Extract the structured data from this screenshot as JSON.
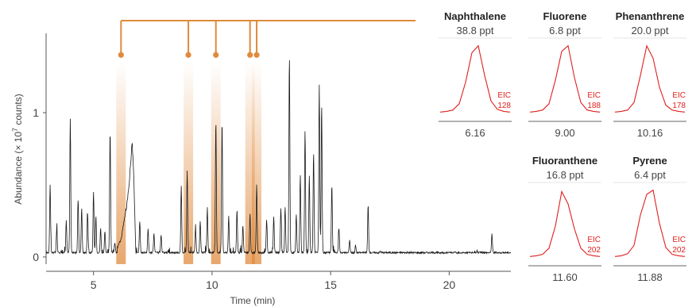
{
  "chart_data": [
    {
      "type": "line",
      "id": "main-chromatogram",
      "title": "",
      "xlabel": "Time (min)",
      "ylabel_prefix": "Abundance (× 10",
      "ylabel_exp": "7",
      "ylabel_suffix": " counts)",
      "xlim": [
        3.0,
        22.6
      ],
      "ylim": [
        -0.05,
        1.55
      ],
      "x_ticks": [
        5,
        10,
        15,
        20
      ],
      "y_ticks": [
        0,
        1
      ],
      "grid": false,
      "line_color": "#1a1a1a",
      "highlight_color": "#e08a3c",
      "baseline": 0.03,
      "peaks": [
        {
          "x": 3.17,
          "y": 0.5
        },
        {
          "x": 3.45,
          "y": 0.2
        },
        {
          "x": 3.85,
          "y": 0.25
        },
        {
          "x": 4.02,
          "y": 0.96
        },
        {
          "x": 4.35,
          "y": 0.4
        },
        {
          "x": 4.5,
          "y": 0.34
        },
        {
          "x": 4.75,
          "y": 0.3
        },
        {
          "x": 5.0,
          "y": 0.45
        },
        {
          "x": 5.1,
          "y": 0.28
        },
        {
          "x": 5.3,
          "y": 0.2
        },
        {
          "x": 5.48,
          "y": 0.18
        },
        {
          "x": 5.7,
          "y": 0.88
        },
        {
          "x": 5.9,
          "y": 0.1
        },
        {
          "x": 6.35,
          "y": 0.3
        },
        {
          "x": 6.7,
          "y": 0.35
        },
        {
          "x": 6.95,
          "y": 0.25
        },
        {
          "x": 7.3,
          "y": 0.2
        },
        {
          "x": 7.55,
          "y": 0.16
        },
        {
          "x": 7.85,
          "y": 0.15
        },
        {
          "x": 8.7,
          "y": 0.49
        },
        {
          "x": 8.95,
          "y": 0.6
        },
        {
          "x": 9.3,
          "y": 0.2
        },
        {
          "x": 9.5,
          "y": 0.25
        },
        {
          "x": 9.8,
          "y": 0.34
        },
        {
          "x": 10.16,
          "y": 0.95
        },
        {
          "x": 10.42,
          "y": 0.95
        },
        {
          "x": 10.7,
          "y": 0.28
        },
        {
          "x": 11.05,
          "y": 0.33
        },
        {
          "x": 11.3,
          "y": 0.22
        },
        {
          "x": 11.6,
          "y": 0.3
        },
        {
          "x": 11.88,
          "y": 0.5
        },
        {
          "x": 12.3,
          "y": 0.26
        },
        {
          "x": 12.6,
          "y": 0.28
        },
        {
          "x": 12.9,
          "y": 0.34
        },
        {
          "x": 13.08,
          "y": 0.35
        },
        {
          "x": 13.26,
          "y": 1.4
        },
        {
          "x": 13.55,
          "y": 0.3
        },
        {
          "x": 13.72,
          "y": 0.57
        },
        {
          "x": 13.92,
          "y": 0.88
        },
        {
          "x": 14.1,
          "y": 0.56
        },
        {
          "x": 14.28,
          "y": 0.72
        },
        {
          "x": 14.52,
          "y": 1.19
        },
        {
          "x": 14.62,
          "y": 1.05
        },
        {
          "x": 15.05,
          "y": 0.5
        },
        {
          "x": 15.35,
          "y": 0.2
        },
        {
          "x": 15.8,
          "y": 0.12
        },
        {
          "x": 16.05,
          "y": 0.08
        },
        {
          "x": 16.58,
          "y": 0.36
        },
        {
          "x": 17.1,
          "y": 0.04
        },
        {
          "x": 21.8,
          "y": 0.16
        }
      ],
      "hump": [
        {
          "x": 6.0,
          "y": 0.06
        },
        {
          "x": 6.1,
          "y": 0.1
        },
        {
          "x": 6.2,
          "y": 0.16
        },
        {
          "x": 6.3,
          "y": 0.26
        },
        {
          "x": 6.4,
          "y": 0.36
        },
        {
          "x": 6.5,
          "y": 0.5
        },
        {
          "x": 6.57,
          "y": 0.66
        },
        {
          "x": 6.63,
          "y": 0.8
        },
        {
          "x": 6.7,
          "y": 0.55
        },
        {
          "x": 6.78,
          "y": 0.05
        }
      ],
      "markers": [
        {
          "name": "Naphthalene",
          "x": 6.16
        },
        {
          "name": "Fluorene",
          "x": 9.0
        },
        {
          "name": "Phenanthrene",
          "x": 10.16
        },
        {
          "name": "Fluoranthene",
          "x": 11.6
        },
        {
          "name": "Pyrene",
          "x": 11.88
        }
      ],
      "marker_y": 1.4
    },
    {
      "type": "line",
      "id": "eic-insets",
      "line_color": "#e0201e",
      "compounds": [
        {
          "name": "Naphthalene",
          "concentration": "38.8 ppt",
          "rt": "6.16",
          "eic_label": "EIC",
          "mz": "128",
          "shape": [
            0.02,
            0.03,
            0.05,
            0.14,
            0.45,
            0.88,
            0.98,
            0.55,
            0.18,
            0.06,
            0.03,
            0.02
          ]
        },
        {
          "name": "Fluorene",
          "concentration": "6.8 ppt",
          "rt": "9.00",
          "eic_label": "EIC",
          "mz": "188",
          "shape": [
            0.02,
            0.03,
            0.05,
            0.14,
            0.48,
            0.9,
            0.98,
            0.52,
            0.16,
            0.05,
            0.03,
            0.02
          ]
        },
        {
          "name": "Phenanthrene",
          "concentration": "20.0 ppt",
          "rt": "10.16",
          "eic_label": "EIC",
          "mz": "178",
          "shape": [
            0.02,
            0.03,
            0.05,
            0.16,
            0.55,
            0.98,
            0.8,
            0.38,
            0.12,
            0.05,
            0.03,
            0.02
          ]
        },
        {
          "name": "Fluoranthene",
          "concentration": "16.8 ppt",
          "rt": "11.60",
          "eic_label": "EIC",
          "mz": "202",
          "shape": [
            0.02,
            0.03,
            0.05,
            0.14,
            0.46,
            0.96,
            0.78,
            0.42,
            0.14,
            0.05,
            0.03,
            0.02
          ]
        },
        {
          "name": "Pyrene",
          "concentration": "6.4 ppt",
          "rt": "11.88",
          "eic_label": "EIC",
          "mz": "202",
          "shape": [
            0.02,
            0.03,
            0.06,
            0.18,
            0.62,
            0.92,
            0.98,
            0.5,
            0.15,
            0.05,
            0.03,
            0.02
          ]
        }
      ]
    }
  ]
}
